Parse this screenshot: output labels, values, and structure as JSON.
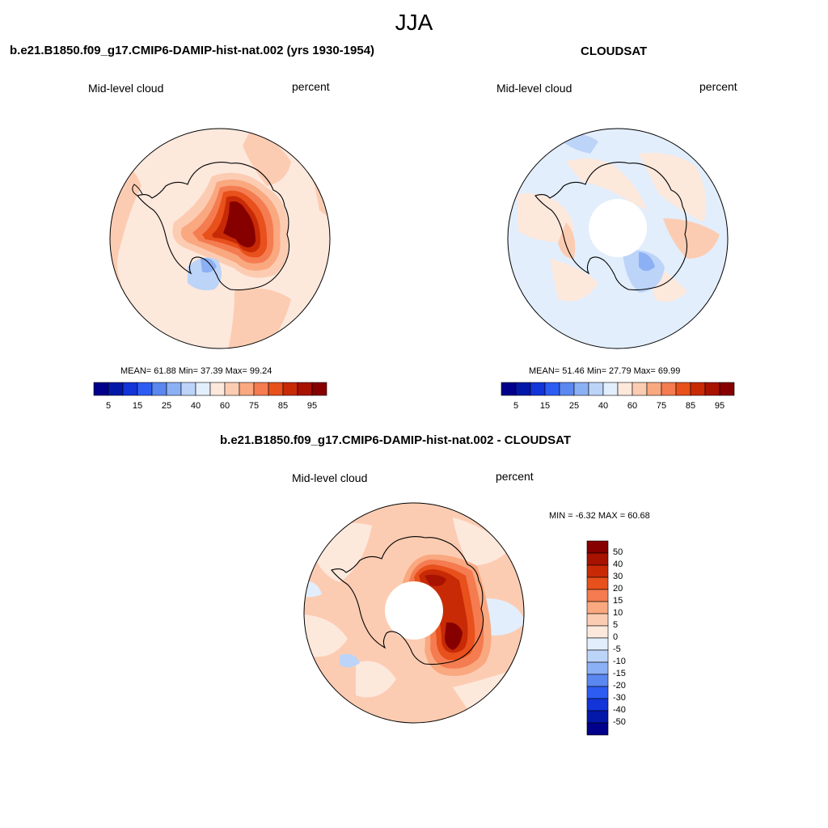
{
  "figure": {
    "title": "JJA"
  },
  "panels": [
    {
      "title": "b.e21.B1850.f09_g17.CMIP6-DAMIP-hist-nat.002 (yrs 1930-1954)",
      "left_label": "Mid-level cloud",
      "right_label": "percent",
      "stats": "MEAN=  61.88  Min=  37.39  Max=  99.24",
      "colorbar_ticks": [
        "5",
        "15",
        "25",
        "40",
        "60",
        "75",
        "85",
        "95"
      ]
    },
    {
      "title": "CLOUDSAT",
      "left_label": "Mid-level cloud",
      "right_label": "percent",
      "stats": "MEAN=  51.46  Min=  27.79  Max=  69.99",
      "colorbar_ticks": [
        "5",
        "15",
        "25",
        "40",
        "60",
        "75",
        "85",
        "95"
      ]
    },
    {
      "title": "b.e21.B1850.f09_g17.CMIP6-DAMIP-hist-nat.002 - CLOUDSAT",
      "left_label": "Mid-level cloud",
      "right_label": "percent",
      "stats": "MIN =  -6.32 MAX =  60.68",
      "colorbar_ticks": [
        "50",
        "40",
        "30",
        "20",
        "15",
        "10",
        "5",
        "0",
        "-5",
        "-10",
        "-15",
        "-20",
        "-30",
        "-40",
        "-50"
      ]
    }
  ],
  "colors": {
    "levels_abs": [
      "#00008a",
      "#0418a8",
      "#1234d8",
      "#2c5cf2",
      "#5a88f0",
      "#8cb0f4",
      "#bcd4f8",
      "#e2eefc",
      "#fde8dc",
      "#fcccb2",
      "#f9a880",
      "#f47c50",
      "#e8501c",
      "#c82a06",
      "#a81200",
      "#860000"
    ],
    "levels_diff": [
      "#00008a",
      "#0418a8",
      "#1234d8",
      "#2c5cf2",
      "#5a88f0",
      "#8cb0f4",
      "#bcd4f8",
      "#e2eefc",
      "#fde8dc",
      "#fcccb2",
      "#f9a880",
      "#f47c50",
      "#e8501c",
      "#c82a06",
      "#a81200",
      "#860000"
    ],
    "land_outline": "#000000",
    "missing": "#ffffff"
  }
}
